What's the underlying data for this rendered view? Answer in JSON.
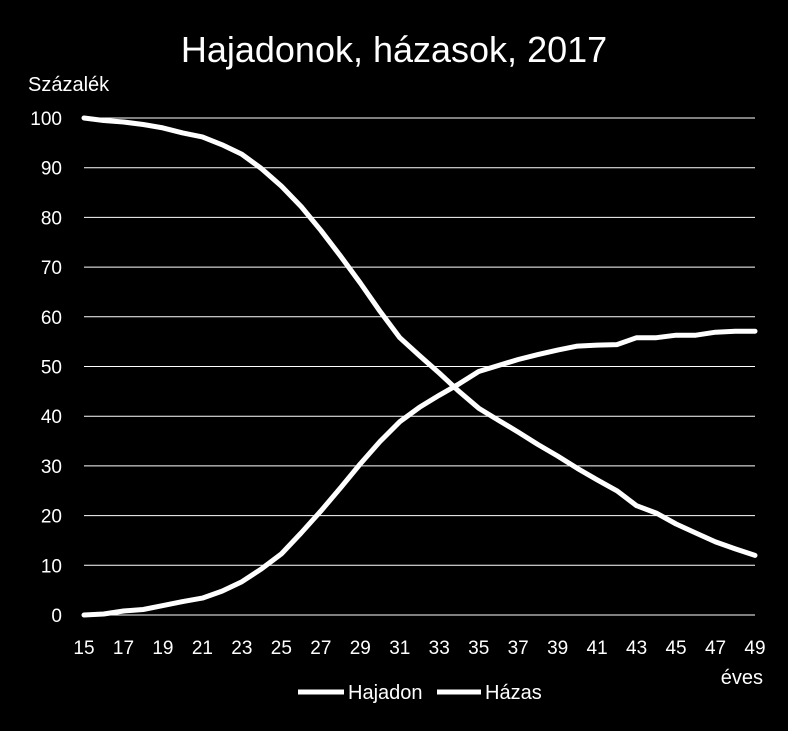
{
  "chart_data": {
    "type": "line",
    "title": "Hajadonok, házasok, 2017",
    "ylabel": "Százalék",
    "xlabel": "éves",
    "ylim": [
      0,
      100
    ],
    "yticks": [
      0,
      10,
      20,
      30,
      40,
      50,
      60,
      70,
      80,
      90,
      100
    ],
    "xlim": [
      15,
      49
    ],
    "xticks": [
      15,
      17,
      19,
      21,
      23,
      25,
      27,
      29,
      31,
      33,
      35,
      37,
      39,
      41,
      43,
      45,
      47,
      49
    ],
    "x": [
      15,
      16,
      17,
      18,
      19,
      20,
      21,
      22,
      23,
      24,
      25,
      26,
      27,
      28,
      29,
      30,
      31,
      32,
      33,
      34,
      35,
      36,
      37,
      38,
      39,
      40,
      41,
      42,
      43,
      44,
      45,
      46,
      47,
      48,
      49
    ],
    "grid": "horizontal",
    "legend_position": "bottom",
    "series": [
      {
        "name": "Hajadon",
        "color": "#ffffff",
        "values": [
          100,
          99.5,
          99.2,
          98.7,
          98,
          97,
          96.2,
          94.6,
          92.7,
          89.8,
          86.3,
          82.2,
          77.4,
          72.2,
          66.8,
          61.1,
          55.8,
          52.2,
          48.7,
          45,
          41.6,
          39.2,
          36.8,
          34.3,
          32,
          29.5,
          27.2,
          25,
          22,
          20.5,
          18.3,
          16.5,
          14.7,
          13.3,
          12
        ]
      },
      {
        "name": "Házas",
        "color": "#ffffff",
        "values": [
          0,
          0.2,
          0.8,
          1.1,
          1.9,
          2.7,
          3.4,
          4.8,
          6.7,
          9.3,
          12.3,
          16.5,
          20.9,
          25.6,
          30.4,
          34.9,
          38.9,
          41.8,
          44.2,
          46.5,
          49,
          50.2,
          51.4,
          52.4,
          53.3,
          54.1,
          54.3,
          54.4,
          55.8,
          55.8,
          56.3,
          56.3,
          56.9,
          57.1,
          57.1
        ]
      }
    ]
  }
}
